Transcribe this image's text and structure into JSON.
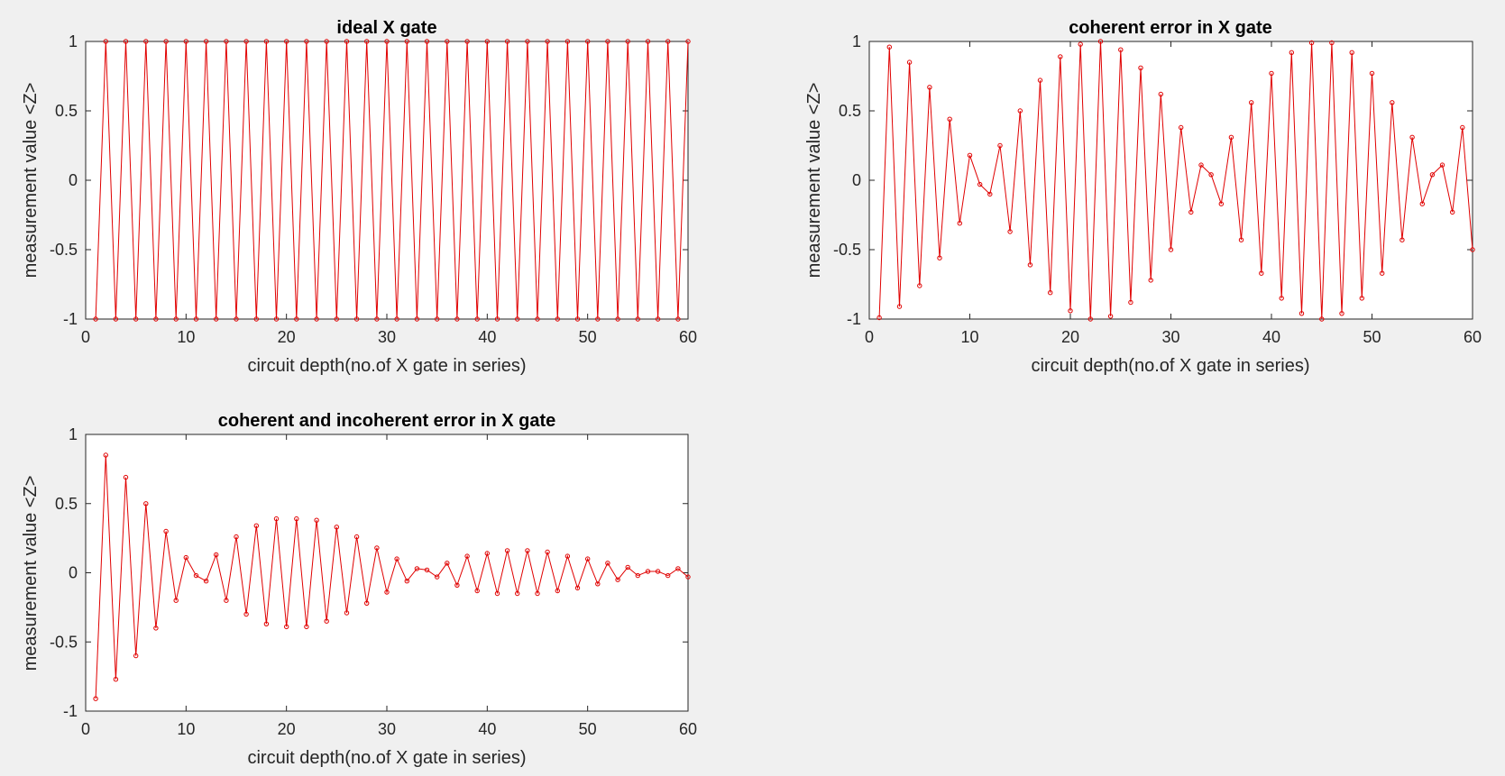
{
  "figure": {
    "background": "#f0f0f0",
    "series_color": "#e00000"
  },
  "chart_data": [
    {
      "type": "line",
      "title": "ideal X gate",
      "xlabel": "circuit depth(no.of X gate in series)",
      "ylabel": "measurement value <Z>",
      "xlim": [
        0,
        60
      ],
      "ylim": [
        -1,
        1
      ],
      "xticks": [
        "0",
        "10",
        "20",
        "30",
        "40",
        "50",
        "60"
      ],
      "yticks": [
        "-1",
        "-0.5",
        "0",
        "0.5",
        "1"
      ],
      "marker": "circle",
      "grid": false,
      "series": [
        {
          "x": [
            1,
            2,
            3,
            4,
            5,
            6,
            7,
            8,
            9,
            10,
            11,
            12,
            13,
            14,
            15,
            16,
            17,
            18,
            19,
            20,
            21,
            22,
            23,
            24,
            25,
            26,
            27,
            28,
            29,
            30,
            31,
            32,
            33,
            34,
            35,
            36,
            37,
            38,
            39,
            40,
            41,
            42,
            43,
            44,
            45,
            46,
            47,
            48,
            49,
            50,
            51,
            52,
            53,
            54,
            55,
            56,
            57,
            58,
            59,
            60
          ],
          "y": [
            -1,
            1,
            -1,
            1,
            -1,
            1,
            -1,
            1,
            -1,
            1,
            -1,
            1,
            -1,
            1,
            -1,
            1,
            -1,
            1,
            -1,
            1,
            -1,
            1,
            -1,
            1,
            -1,
            1,
            -1,
            1,
            -1,
            1,
            -1,
            1,
            -1,
            1,
            -1,
            1,
            -1,
            1,
            -1,
            1,
            -1,
            1,
            -1,
            1,
            -1,
            1,
            -1,
            1,
            -1,
            1,
            -1,
            1,
            -1,
            1,
            -1,
            1,
            -1,
            1,
            -1,
            1
          ]
        }
      ]
    },
    {
      "type": "line",
      "title": "coherent error in X gate",
      "xlabel": "circuit depth(no.of X gate in series)",
      "ylabel": "measurement value <Z>",
      "xlim": [
        0,
        60
      ],
      "ylim": [
        -1,
        1
      ],
      "xticks": [
        "0",
        "10",
        "20",
        "30",
        "40",
        "50",
        "60"
      ],
      "yticks": [
        "-1",
        "-0.5",
        "0",
        "0.5",
        "1"
      ],
      "marker": "circle",
      "grid": false,
      "series": [
        {
          "x": [
            1,
            2,
            3,
            4,
            5,
            6,
            7,
            8,
            9,
            10,
            11,
            12,
            13,
            14,
            15,
            16,
            17,
            18,
            19,
            20,
            21,
            22,
            23,
            24,
            25,
            26,
            27,
            28,
            29,
            30,
            31,
            32,
            33,
            34,
            35,
            36,
            37,
            38,
            39,
            40,
            41,
            42,
            43,
            44,
            45,
            46,
            47,
            48,
            49,
            50,
            51,
            52,
            53,
            54,
            55,
            56,
            57,
            58,
            59,
            60
          ],
          "y": [
            -0.99,
            0.96,
            -0.91,
            0.85,
            -0.76,
            0.67,
            -0.56,
            0.44,
            -0.31,
            0.18,
            -0.03,
            -0.1,
            0.25,
            -0.37,
            0.5,
            -0.61,
            0.72,
            -0.81,
            0.89,
            -0.94,
            0.98,
            -1.0,
            1.0,
            -0.98,
            0.94,
            -0.88,
            0.81,
            -0.72,
            0.62,
            -0.5,
            0.38,
            -0.23,
            0.11,
            0.04,
            -0.17,
            0.31,
            -0.43,
            0.56,
            -0.67,
            0.77,
            -0.85,
            0.92,
            -0.96,
            0.99,
            -1.0,
            0.99,
            -0.96,
            0.92,
            -0.85,
            0.77,
            -0.67,
            0.56,
            -0.43,
            0.31,
            -0.17,
            0.04,
            0.11,
            -0.23,
            0.38,
            -0.5
          ]
        }
      ]
    },
    {
      "type": "line",
      "title": "coherent and incoherent error in X gate",
      "xlabel": "circuit depth(no.of X gate in series)",
      "ylabel": "measurement value <Z>",
      "xlim": [
        0,
        60
      ],
      "ylim": [
        -1,
        1
      ],
      "xticks": [
        "0",
        "10",
        "20",
        "30",
        "40",
        "50",
        "60"
      ],
      "yticks": [
        "-1",
        "-0.5",
        "0",
        "0.5",
        "1"
      ],
      "marker": "circle",
      "grid": false,
      "series": [
        {
          "x": [
            1,
            2,
            3,
            4,
            5,
            6,
            7,
            8,
            9,
            10,
            11,
            12,
            13,
            14,
            15,
            16,
            17,
            18,
            19,
            20,
            21,
            22,
            23,
            24,
            25,
            26,
            27,
            28,
            29,
            30,
            31,
            32,
            33,
            34,
            35,
            36,
            37,
            38,
            39,
            40,
            41,
            42,
            43,
            44,
            45,
            46,
            47,
            48,
            49,
            50,
            51,
            52,
            53,
            54,
            55,
            56,
            57,
            58,
            59,
            60
          ],
          "y": [
            -0.91,
            0.85,
            -0.77,
            0.69,
            -0.6,
            0.5,
            -0.4,
            0.3,
            -0.2,
            0.11,
            -0.02,
            -0.06,
            0.13,
            -0.2,
            0.26,
            -0.3,
            0.34,
            -0.37,
            0.39,
            -0.39,
            0.39,
            -0.39,
            0.38,
            -0.35,
            0.33,
            -0.29,
            0.26,
            -0.22,
            0.18,
            -0.14,
            0.1,
            -0.06,
            0.03,
            0.02,
            -0.03,
            0.07,
            -0.09,
            0.12,
            -0.13,
            0.14,
            -0.15,
            0.16,
            -0.15,
            0.16,
            -0.15,
            0.15,
            -0.13,
            0.12,
            -0.11,
            0.1,
            -0.08,
            0.07,
            -0.05,
            0.04,
            -0.02,
            0.01,
            0.01,
            -0.02,
            0.03,
            -0.03
          ]
        }
      ]
    }
  ]
}
